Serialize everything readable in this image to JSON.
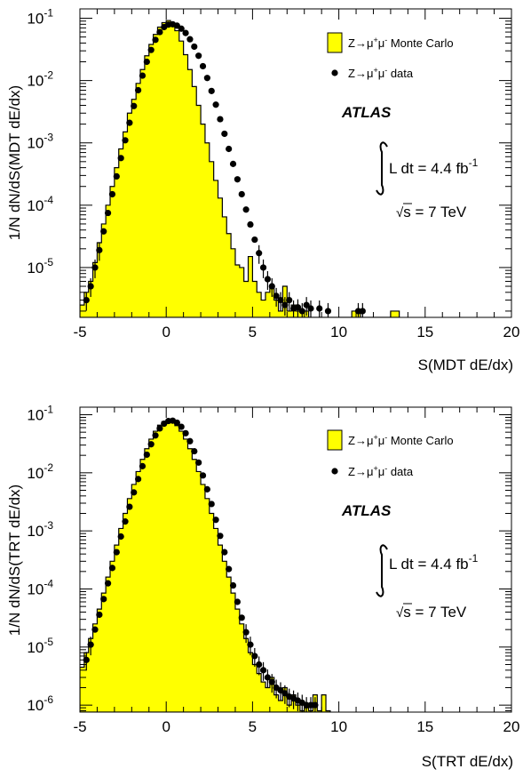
{
  "chart_data": [
    {
      "type": "histogram",
      "ylabel": "1/N dN/dS(MDT dE/dx)",
      "xlabel": "S(MDT dE/dx)",
      "xlim": [
        -5,
        20
      ],
      "ylim_log10": [
        -5.8,
        -0.85
      ],
      "yscale": "log",
      "x_ticks": [
        "-5",
        "0",
        "5",
        "10",
        "15",
        "20"
      ],
      "y_ticks": [
        {
          "base": "10",
          "exp": "-1"
        },
        {
          "base": "10",
          "exp": "-2"
        },
        {
          "base": "10",
          "exp": "-3"
        },
        {
          "base": "10",
          "exp": "-4"
        },
        {
          "base": "10",
          "exp": "-5"
        }
      ],
      "legend": [
        {
          "kind": "box",
          "color": "#ffff00",
          "text_pre": "Z→μ",
          "sup1": "+",
          "mid": "μ",
          "sup2": "-",
          "text_post": " Monte Carlo"
        },
        {
          "kind": "marker",
          "color": "#000000",
          "text_pre": "Z→μ",
          "sup1": "+",
          "mid": "μ",
          "sup2": "-",
          "text_post": " data"
        }
      ],
      "atlas": "ATLAS",
      "lumi": {
        "prefix": "L dt = 4.4 fb",
        "exp": "-1"
      },
      "energy": {
        "root": "√",
        "s": "s",
        "rest": " = 7 TeV"
      },
      "series": [
        {
          "name": "Z→μ+μ- Monte Carlo",
          "x": [
            -5.0,
            -4.75,
            -4.5,
            -4.25,
            -4.0,
            -3.75,
            -3.5,
            -3.25,
            -3.0,
            -2.75,
            -2.5,
            -2.25,
            -2.0,
            -1.75,
            -1.5,
            -1.25,
            -1.0,
            -0.75,
            -0.5,
            -0.25,
            0.0,
            0.25,
            0.5,
            0.75,
            1.0,
            1.25,
            1.5,
            1.75,
            2.0,
            2.25,
            2.5,
            2.75,
            3.0,
            3.25,
            3.5,
            3.75,
            4.0,
            4.25,
            4.5,
            4.75,
            5.0,
            5.25,
            5.5,
            5.75,
            6.0,
            6.25,
            6.5,
            6.75,
            7.0,
            7.25,
            7.5,
            7.75,
            8.0,
            10.75,
            11.0,
            13.0,
            13.25
          ],
          "y": [
            2.5e-06,
            4e-06,
            6e-06,
            1.2e-05,
            2.5e-05,
            5e-05,
            0.0001,
            0.0002,
            0.0004,
            0.0008,
            0.0015,
            0.003,
            0.005,
            0.009,
            0.015,
            0.025,
            0.038,
            0.055,
            0.072,
            0.085,
            0.092,
            0.083,
            0.063,
            0.043,
            0.026,
            0.015,
            0.008,
            0.004,
            0.002,
            0.001,
            0.0005,
            0.00025,
            0.00013,
            6.5e-05,
            3.5e-05,
            2e-05,
            1.1e-05,
            1e-05,
            6e-06,
            1.5e-05,
            6e-06,
            4e-06,
            3e-06,
            4e-06,
            5e-06,
            3e-06,
            2e-06,
            5e-06,
            2e-06,
            2.5e-06,
            2e-06,
            2e-06,
            2e-06,
            2e-06,
            2e-06,
            2e-06,
            2e-06
          ]
        },
        {
          "name": "Z→μ+μ- data",
          "x": [
            -4.75,
            -4.5,
            -4.25,
            -4.0,
            -3.75,
            -3.5,
            -3.25,
            -3.0,
            -2.75,
            -2.5,
            -2.25,
            -2.0,
            -1.75,
            -1.5,
            -1.25,
            -1.0,
            -0.75,
            -0.5,
            -0.25,
            0.0,
            0.25,
            0.5,
            0.75,
            1.0,
            1.25,
            1.5,
            1.75,
            2.0,
            2.25,
            2.5,
            2.75,
            3.0,
            3.25,
            3.5,
            3.75,
            4.0,
            4.25,
            4.5,
            4.75,
            5.0,
            5.25,
            5.5,
            5.75,
            6.0,
            6.25,
            6.5,
            6.75,
            7.0,
            7.25,
            7.5,
            7.75,
            8.0,
            8.25,
            8.75,
            9.25,
            11.0,
            11.25
          ],
          "y": [
            3e-06,
            5e-06,
            1e-05,
            1.9e-05,
            3.8e-05,
            7.5e-05,
            0.00015,
            0.00029,
            0.00057,
            0.0011,
            0.0021,
            0.0039,
            0.007,
            0.012,
            0.02,
            0.031,
            0.045,
            0.06,
            0.072,
            0.079,
            0.08,
            0.076,
            0.068,
            0.058,
            0.046,
            0.035,
            0.025,
            0.017,
            0.011,
            0.0068,
            0.0041,
            0.0024,
            0.0014,
            0.0008,
            0.00046,
            0.00026,
            0.00015,
            8.5e-05,
            4.9e-05,
            2.8e-05,
            1.7e-05,
            1e-05,
            6.5e-06,
            5e-06,
            3.5e-06,
            3e-06,
            2.5e-06,
            3e-06,
            2.2e-06,
            2.3e-06,
            2e-06,
            2.5e-06,
            2.2e-06,
            2.2e-06,
            2e-06,
            2e-06,
            2e-06
          ]
        }
      ]
    },
    {
      "type": "histogram",
      "ylabel": "1/N dN/dS(TRT dE/dx)",
      "xlabel": "S(TRT dE/dx)",
      "xlim": [
        -5,
        20
      ],
      "ylim_log10": [
        -6.12,
        -0.87
      ],
      "yscale": "log",
      "x_ticks": [
        "-5",
        "0",
        "5",
        "10",
        "15",
        "20"
      ],
      "y_ticks": [
        {
          "base": "10",
          "exp": "-1"
        },
        {
          "base": "10",
          "exp": "-2"
        },
        {
          "base": "10",
          "exp": "-3"
        },
        {
          "base": "10",
          "exp": "-4"
        },
        {
          "base": "10",
          "exp": "-5"
        },
        {
          "base": "10",
          "exp": "-6"
        }
      ],
      "legend": [
        {
          "kind": "box",
          "color": "#ffff00",
          "text_pre": "Z→μ",
          "sup1": "+",
          "mid": "μ",
          "sup2": "-",
          "text_post": " Monte Carlo"
        },
        {
          "kind": "marker",
          "color": "#000000",
          "text_pre": "Z→μ",
          "sup1": "+",
          "mid": "μ",
          "sup2": "-",
          "text_post": " data"
        }
      ],
      "atlas": "ATLAS",
      "lumi": {
        "prefix": "L dt = 4.4 fb",
        "exp": "-1"
      },
      "energy": {
        "root": "√",
        "s": "s",
        "rest": " = 7 TeV"
      },
      "series": [
        {
          "name": "Z→μ+μ- Monte Carlo",
          "x": [
            -5.0,
            -4.75,
            -4.5,
            -4.25,
            -4.0,
            -3.75,
            -3.5,
            -3.25,
            -3.0,
            -2.75,
            -2.5,
            -2.25,
            -2.0,
            -1.75,
            -1.5,
            -1.25,
            -1.0,
            -0.75,
            -0.5,
            -0.25,
            0.0,
            0.25,
            0.5,
            0.75,
            1.0,
            1.25,
            1.5,
            1.75,
            2.0,
            2.25,
            2.5,
            2.75,
            3.0,
            3.25,
            3.5,
            3.75,
            4.0,
            4.25,
            4.5,
            4.75,
            5.0,
            5.25,
            5.5,
            5.75,
            6.0,
            6.25,
            6.5,
            6.75,
            7.0,
            7.25,
            7.5,
            7.75,
            8.0,
            8.25,
            8.5,
            8.75,
            9.0,
            9.25
          ],
          "y": [
            4.5e-06,
            8e-06,
            1.4e-05,
            2.5e-05,
            4.5e-05,
            8.5e-05,
            0.00016,
            0.0003,
            0.00057,
            0.0011,
            0.002,
            0.0036,
            0.0063,
            0.0105,
            0.017,
            0.026,
            0.038,
            0.052,
            0.066,
            0.076,
            0.079,
            0.075,
            0.065,
            0.052,
            0.038,
            0.026,
            0.017,
            0.0105,
            0.0063,
            0.0036,
            0.002,
            0.0011,
            0.00057,
            0.0003,
            0.00016,
            8.5e-05,
            4.5e-05,
            2.5e-05,
            1.4e-05,
            8e-06,
            5e-06,
            3.5e-06,
            2.5e-06,
            2e-06,
            3e-06,
            1.5e-06,
            1.2e-06,
            2e-06,
            1e-06,
            1.5e-06,
            1e-06,
            8e-07,
            9e-07,
            8e-07,
            1.5e-06,
            8e-07,
            1.5e-06,
            8e-07
          ]
        },
        {
          "name": "Z→μ+μ- data",
          "x": [
            -4.75,
            -4.5,
            -4.25,
            -4.0,
            -3.75,
            -3.5,
            -3.25,
            -3.0,
            -2.75,
            -2.5,
            -2.25,
            -2.0,
            -1.75,
            -1.5,
            -1.25,
            -1.0,
            -0.75,
            -0.5,
            -0.25,
            0.0,
            0.25,
            0.5,
            0.75,
            1.0,
            1.25,
            1.5,
            1.75,
            2.0,
            2.25,
            2.5,
            2.75,
            3.0,
            3.25,
            3.5,
            3.75,
            4.0,
            4.25,
            4.5,
            4.75,
            5.0,
            5.25,
            5.5,
            5.75,
            6.0,
            6.25,
            6.5,
            6.75,
            7.0,
            7.25,
            7.5,
            7.75,
            8.0,
            8.25,
            8.5
          ],
          "y": [
            6e-06,
            1.1e-05,
            2e-05,
            3.6e-05,
            6.7e-05,
            0.000125,
            0.00023,
            0.00043,
            0.0008,
            0.00145,
            0.0026,
            0.0046,
            0.0078,
            0.013,
            0.0205,
            0.031,
            0.044,
            0.058,
            0.07,
            0.078,
            0.079,
            0.073,
            0.062,
            0.048,
            0.035,
            0.0235,
            0.015,
            0.009,
            0.0052,
            0.0029,
            0.00155,
            0.00082,
            0.00043,
            0.00022,
            0.000115,
            6e-05,
            3.2e-05,
            1.8e-05,
            1.1e-05,
            7e-06,
            5e-06,
            4e-06,
            3e-06,
            2.5e-06,
            2e-06,
            1.8e-06,
            1.6e-06,
            1.4e-06,
            1.3e-06,
            1.2e-06,
            1.1e-06,
            1e-06,
            1e-06,
            1e-06
          ]
        }
      ]
    }
  ]
}
